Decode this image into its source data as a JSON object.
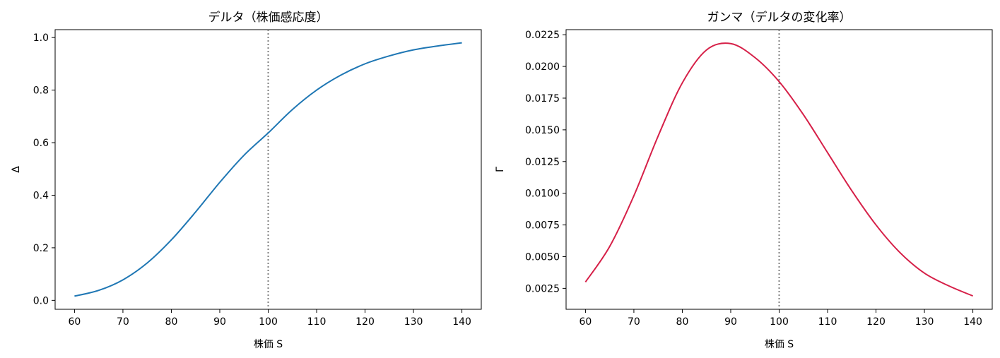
{
  "chart_data": [
    {
      "type": "line",
      "title": "デルタ（株価感応度）",
      "xlabel": "株価 S",
      "ylabel": "Δ",
      "xlim": [
        56,
        144
      ],
      "ylim": [
        -0.034,
        1.03
      ],
      "xticks": [
        60,
        70,
        80,
        90,
        100,
        110,
        120,
        130,
        140
      ],
      "xtick_labels": [
        "60",
        "70",
        "80",
        "90",
        "100",
        "110",
        "120",
        "130",
        "140"
      ],
      "yticks": [
        0.0,
        0.2,
        0.4,
        0.6,
        0.8,
        1.0
      ],
      "ytick_labels": [
        "0.0",
        "0.2",
        "0.4",
        "0.6",
        "0.8",
        "1.0"
      ],
      "grid": false,
      "reference_line": {
        "x": 100,
        "style": "dotted",
        "color": "#808080"
      },
      "series": [
        {
          "color": "#1f77b4",
          "x": [
            60,
            65,
            70,
            75,
            80,
            85,
            90,
            95,
            100,
            105,
            110,
            115,
            120,
            125,
            130,
            135,
            140
          ],
          "y": [
            0.016,
            0.038,
            0.078,
            0.142,
            0.23,
            0.336,
            0.449,
            0.552,
            0.637,
            0.726,
            0.8,
            0.857,
            0.9,
            0.93,
            0.953,
            0.968,
            0.98
          ]
        }
      ]
    },
    {
      "type": "line",
      "title": "ガンマ（デルタの変化率）",
      "xlabel": "株価 S",
      "ylabel": "Γ",
      "xlim": [
        56,
        144
      ],
      "ylim": [
        0.00085,
        0.0229
      ],
      "xticks": [
        60,
        70,
        80,
        90,
        100,
        110,
        120,
        130,
        140
      ],
      "xtick_labels": [
        "60",
        "70",
        "80",
        "90",
        "100",
        "110",
        "120",
        "130",
        "140"
      ],
      "yticks": [
        0.0025,
        0.005,
        0.0075,
        0.01,
        0.0125,
        0.015,
        0.0175,
        0.02,
        0.0225
      ],
      "ytick_labels": [
        "0.0025",
        "0.0050",
        "0.0075",
        "0.0100",
        "0.0125",
        "0.0150",
        "0.0175",
        "0.0200",
        "0.0225"
      ],
      "grid": false,
      "reference_line": {
        "x": 100,
        "style": "dotted",
        "color": "#808080"
      },
      "series": [
        {
          "color": "#d62048",
          "x": [
            60,
            65,
            70,
            75,
            80,
            85,
            90,
            95,
            100,
            105,
            110,
            115,
            120,
            125,
            130,
            135,
            140
          ],
          "y": [
            0.003,
            0.0058,
            0.0098,
            0.0145,
            0.0187,
            0.0213,
            0.0218,
            0.0207,
            0.0188,
            0.0162,
            0.0132,
            0.0102,
            0.0075,
            0.0053,
            0.0037,
            0.0027,
            0.0019
          ]
        }
      ]
    }
  ]
}
